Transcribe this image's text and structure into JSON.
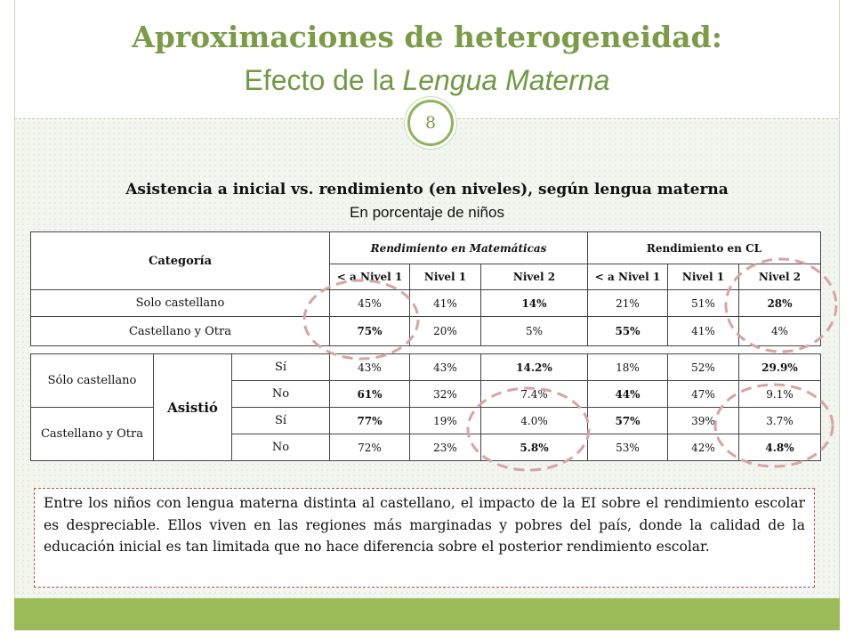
{
  "header": {
    "title": "Aproximaciones de heterogeneidad:",
    "subtitle_prefix": "Efecto de la ",
    "subtitle_emphasis": "Lengua Materna",
    "page_number": "8"
  },
  "table": {
    "title": "Asistencia a inicial vs. rendimiento (en niveles), según lengua materna",
    "subtitle": "En porcentaje de niños",
    "head": {
      "categoria": "Categoría",
      "matematicas": "Rendimiento en Matemáticas",
      "cl": "Rendimiento en CL",
      "levels": [
        "< a Nivel 1",
        "Nivel 1",
        "Nivel 2",
        "< a Nivel 1",
        "Nivel 1",
        "Nivel 2"
      ]
    },
    "rows_a": [
      {
        "label": "Solo castellano",
        "values": [
          "45%",
          "41%",
          "14%",
          "21%",
          "51%",
          "28%"
        ]
      },
      {
        "label": "Castellano y Otra",
        "values": [
          "75%",
          "20%",
          "5%",
          "55%",
          "41%",
          "4%"
        ]
      }
    ],
    "group_label": "Asistió",
    "groups": [
      {
        "label": "Sólo castellano",
        "rows": [
          {
            "attended": "Sí",
            "values": [
              "43%",
              "43%",
              "14.2%",
              "18%",
              "52%",
              "29.9%"
            ]
          },
          {
            "attended": "No",
            "values": [
              "61%",
              "32%",
              "7.4%",
              "44%",
              "47%",
              "9.1%"
            ]
          }
        ]
      },
      {
        "label": "Castellano y Otra",
        "rows": [
          {
            "attended": "Sí",
            "values": [
              "77%",
              "19%",
              "4.0%",
              "57%",
              "39%",
              "3.7%"
            ]
          },
          {
            "attended": "No",
            "values": [
              "72%",
              "23%",
              "5.8%",
              "53%",
              "42%",
              "4.8%"
            ]
          }
        ]
      }
    ]
  },
  "note": "Entre los niños con lengua materna distinta al castellano, el impacto de la EI sobre el rendimiento escolar es despreciable. Ellos viven en las regiones más marginadas y pobres del país, donde la calidad de la educación inicial es tan limitada que no hace diferencia sobre el posterior rendimiento escolar.",
  "colors": {
    "accent": "#9bbb59",
    "title": "#7a9c47",
    "highlight_circles": "#d9a3a3",
    "note_border": "#c0504d"
  }
}
